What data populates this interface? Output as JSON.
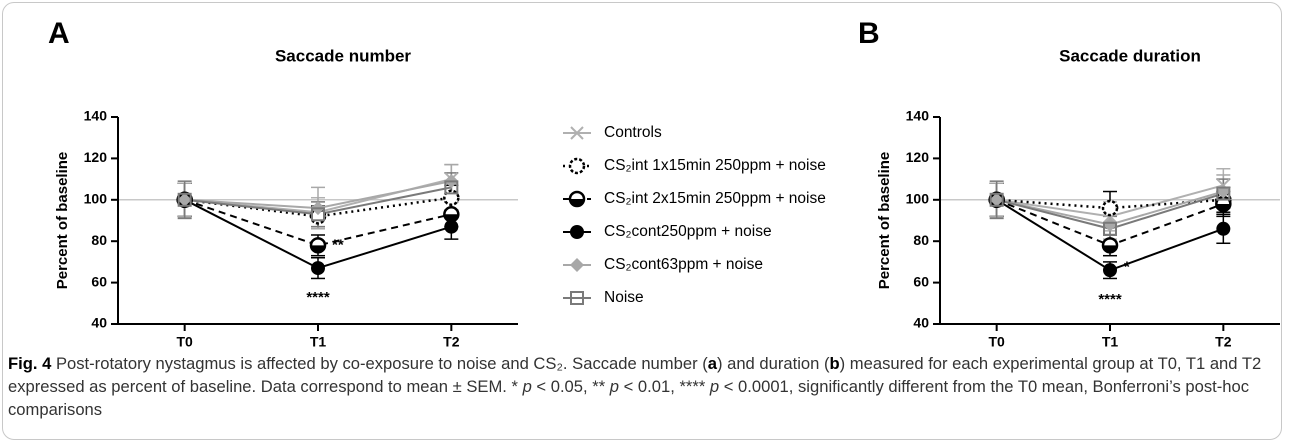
{
  "chart_data": [
    {
      "type": "line",
      "label": "A",
      "title": "Saccade number",
      "ylabel": "Percent of baseline",
      "categories": [
        "T0",
        "T1",
        "T2"
      ],
      "ylim": [
        40,
        140
      ],
      "yticks": [
        40,
        60,
        80,
        100,
        120,
        140
      ],
      "reference": 100,
      "series": [
        {
          "name": "Controls",
          "color": "#b0b0b0",
          "values": [
            100,
            94,
            110
          ],
          "errors": [
            8,
            7,
            7
          ]
        },
        {
          "name": "CS₂int 1x15min 250ppm + noise",
          "color": "#000000",
          "values": [
            100,
            92,
            101
          ],
          "errors": [
            8,
            5,
            6
          ]
        },
        {
          "name": "CS₂int 2x15min 250ppm + noise",
          "color": "#000000",
          "values": [
            100,
            78,
            93
          ],
          "errors": [
            8,
            5,
            6
          ]
        },
        {
          "name": "CS₂cont250ppm + noise",
          "color": "#000000",
          "values": [
            100,
            67,
            87
          ],
          "errors": [
            8,
            5,
            6
          ]
        },
        {
          "name": "CS₂cont63ppm + noise",
          "color": "#a8a8a8",
          "values": [
            100,
            96,
            109
          ],
          "errors": [
            8,
            10,
            8
          ]
        },
        {
          "name": "Noise",
          "color": "#7a7a7a",
          "values": [
            100,
            93,
            106
          ],
          "errors": [
            9,
            6,
            7
          ]
        }
      ],
      "annotations": [
        "**",
        "****"
      ]
    },
    {
      "type": "line",
      "label": "B",
      "title": "Saccade duration",
      "ylabel": "Percent of baseline",
      "categories": [
        "T0",
        "T1",
        "T2"
      ],
      "ylim": [
        40,
        140
      ],
      "yticks": [
        40,
        60,
        80,
        100,
        120,
        140
      ],
      "reference": 100,
      "series": [
        {
          "color": "#b0b0b0",
          "values": [
            100,
            92,
            107
          ],
          "errors": [
            8,
            7,
            8
          ]
        },
        {
          "color": "#000000",
          "values": [
            100,
            96,
            100
          ],
          "errors": [
            8,
            8,
            6
          ]
        },
        {
          "color": "#000000",
          "values": [
            100,
            78,
            98
          ],
          "errors": [
            8,
            5,
            6
          ]
        },
        {
          "color": "#000000",
          "values": [
            100,
            66,
            86
          ],
          "errors": [
            8,
            4,
            7
          ]
        },
        {
          "color": "#a8a8a8",
          "values": [
            100,
            88,
            104
          ],
          "errors": [
            8,
            7,
            8
          ]
        },
        {
          "color": "#7a7a7a",
          "values": [
            100,
            86,
            103
          ],
          "errors": [
            9,
            6,
            7
          ]
        }
      ],
      "annotations": [
        "*",
        "****"
      ]
    }
  ],
  "caption": [
    {
      "t": "Fig. 4",
      "s": "b"
    },
    {
      "t": " Post-rotatory nystagmus is affected by co-exposure to noise and CS₂. Saccade number ("
    },
    {
      "t": "a",
      "s": "b"
    },
    {
      "t": ") and duration ("
    },
    {
      "t": "b",
      "s": "b"
    },
    {
      "t": ") measured for each experimental group at T0, T1 and T2 expressed as percent of baseline. Data correspond to mean ± SEM. * "
    },
    {
      "t": "p",
      "s": "i"
    },
    {
      "t": " < 0.05, ** "
    },
    {
      "t": "p",
      "s": "i"
    },
    {
      "t": " < 0.01, **** "
    },
    {
      "t": "p",
      "s": "i"
    },
    {
      "t": " < 0.0001, significantly different from the T0 mean, Bonferroni’s post-hoc comparisons"
    }
  ]
}
